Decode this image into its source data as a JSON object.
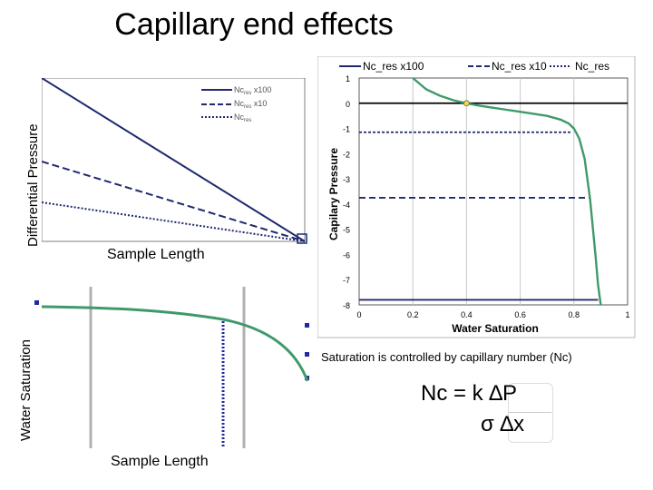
{
  "title": "Capillary end effects",
  "left_top": {
    "ylabel": "Differential Pressure",
    "xlabel": "Sample Length",
    "legend": [
      "Nc",
      "res",
      " x100",
      "Nc",
      "res",
      " x10",
      "Nc",
      "res"
    ]
  },
  "left_bottom": {
    "ylabel": "Water Saturation",
    "xlabel": "Sample Length"
  },
  "right_caption": "Saturation is controlled by capillary number (Nc)",
  "formula": {
    "line1": "Nc  =  k  ∆P",
    "line2": "σ  ∆x"
  },
  "chart_data": [
    {
      "type": "line",
      "title": "",
      "xlabel": "Sample Length",
      "ylabel": "Differential Pressure",
      "x": [
        0,
        1
      ],
      "series": [
        {
          "name": "Nc_res x100",
          "style": "solid",
          "values": [
            1.0,
            0.0
          ]
        },
        {
          "name": "Nc_res x10",
          "style": "dashed",
          "values": [
            0.48,
            0.0
          ]
        },
        {
          "name": "Nc_res",
          "style": "dotted",
          "values": [
            0.24,
            0.0
          ]
        }
      ],
      "legend_position": "top-right",
      "colors": {
        "lines": "#1f2a6e"
      }
    },
    {
      "type": "line",
      "title": "",
      "xlabel": "Sample Length",
      "ylabel": "Water Saturation",
      "x": [
        0,
        0.2,
        0.4,
        0.6,
        0.7,
        0.8,
        0.9,
        1.0
      ],
      "series": [
        {
          "name": "",
          "values": [
            0.82,
            0.81,
            0.78,
            0.7,
            0.63,
            0.52,
            0.35,
            0.12
          ]
        }
      ],
      "colors": {
        "curve": "#3f9a6a",
        "marker": "#1f2a9e",
        "grid": "#b0b0b0"
      }
    },
    {
      "type": "line",
      "title": "",
      "xlabel": "Water Saturation",
      "ylabel": "Capilary Pressure",
      "xlim": [
        0,
        1
      ],
      "ylim": [
        -8,
        1
      ],
      "x_ticks": [
        "0",
        "0.2",
        "0.4",
        "0.6",
        "0.8",
        "1"
      ],
      "y_ticks": [
        "1",
        "0",
        "-1",
        "-2",
        "-3",
        "-4",
        "-5",
        "-6",
        "-7",
        "-8"
      ],
      "legend": [
        "Nc_res x100",
        "Nc_res x10",
        "Nc_res"
      ],
      "legend_position": "top",
      "capillary_curve": {
        "x": [
          0.2,
          0.25,
          0.3,
          0.35,
          0.4,
          0.45,
          0.5,
          0.55,
          0.6,
          0.65,
          0.7,
          0.75,
          0.78,
          0.8,
          0.82,
          0.84,
          0.86,
          0.88,
          0.89,
          0.9
        ],
        "y": [
          1.0,
          0.55,
          0.3,
          0.12,
          0.0,
          -0.1,
          -0.18,
          -0.26,
          -0.34,
          -0.42,
          -0.5,
          -0.65,
          -0.8,
          -1.0,
          -1.4,
          -2.2,
          -3.8,
          -6.0,
          -7.2,
          -8.0
        ]
      },
      "series": [
        {
          "name": "Nc_res x100",
          "style": "solid",
          "x": [
            0.0,
            0.89
          ],
          "values": [
            -7.8,
            -7.8
          ]
        },
        {
          "name": "Nc_res x10",
          "style": "dashed",
          "x": [
            0.0,
            0.86
          ],
          "values": [
            -3.75,
            -3.75
          ]
        },
        {
          "name": "Nc_res",
          "style": "dotted",
          "x": [
            0.0,
            0.79
          ],
          "values": [
            -1.15,
            -1.15
          ]
        },
        {
          "name": "",
          "style": "solid-black",
          "x": [
            0.0,
            1.0
          ],
          "values": [
            0,
            0
          ]
        }
      ],
      "marker_point": {
        "x": 0.4,
        "y": 0
      },
      "grid": true,
      "colors": {
        "curve": "#3f9a6a",
        "lines": "#1f2a6e",
        "zero": "#000000",
        "grid": "#c8c8c8"
      }
    }
  ]
}
